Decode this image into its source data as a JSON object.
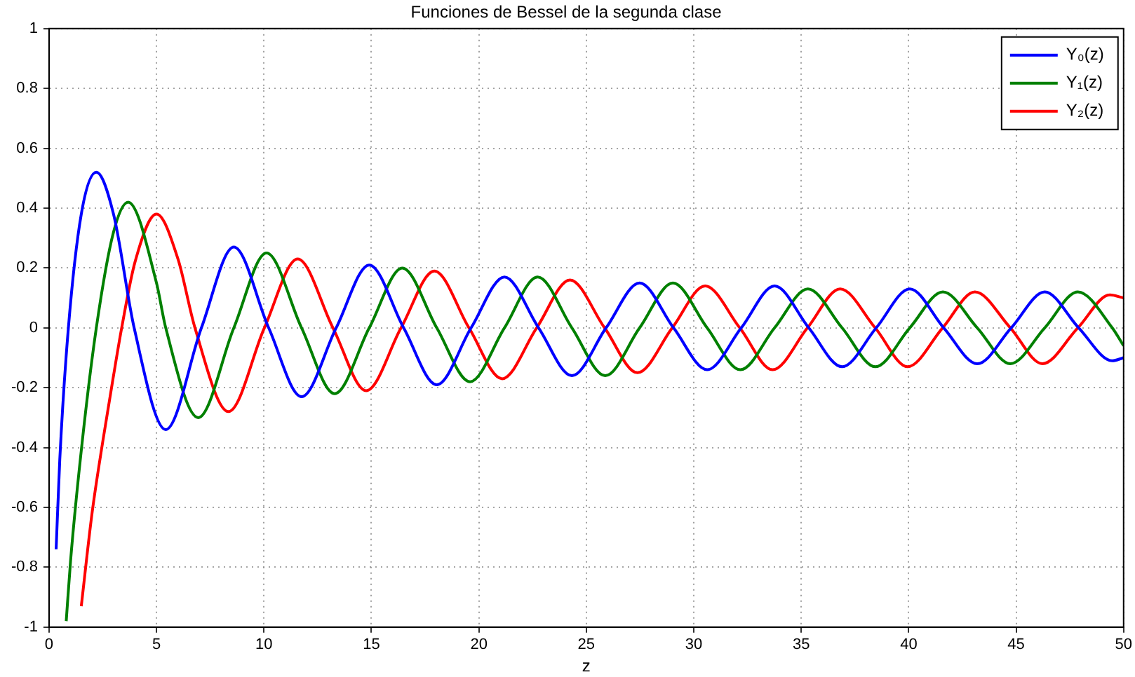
{
  "chart_data": {
    "type": "line",
    "title": "Funciones de Bessel de la segunda clase",
    "xlabel": "z",
    "xlim": [
      0,
      50
    ],
    "xticks": [
      0,
      5,
      10,
      15,
      20,
      25,
      30,
      35,
      40,
      45,
      50
    ],
    "ylim": [
      -1,
      1
    ],
    "yticks": [
      -1,
      -0.8,
      -0.6,
      -0.4,
      -0.2,
      0,
      0.2,
      0.4,
      0.6,
      0.8,
      1
    ],
    "grid": true,
    "legend": "top right",
    "line_style": "solid",
    "marker": "none",
    "series": [
      {
        "name": "Y₀(z)",
        "color": "#0000ff",
        "x": [
          0.33,
          0.5,
          0.9,
          1.5,
          2.2,
          3,
          3.96,
          5.43,
          7.09,
          8.6,
          10.22,
          11.75,
          13.36,
          14.9,
          16.5,
          18.04,
          19.64,
          21.19,
          22.78,
          24.33,
          25.92,
          27.48,
          29.06,
          30.62,
          32.21,
          33.76,
          35.35,
          36.9,
          38.49,
          40.05,
          41.63,
          43.19,
          44.77,
          46.33,
          47.91,
          49.47,
          50
        ],
        "values": [
          -0.74,
          -0.44,
          0,
          0.38,
          0.52,
          0.38,
          0,
          -0.34,
          0,
          0.27,
          0,
          -0.23,
          0,
          0.21,
          0,
          -0.19,
          0,
          0.17,
          0,
          -0.16,
          0,
          0.15,
          0,
          -0.14,
          0,
          0.14,
          0,
          -0.13,
          0,
          0.13,
          0,
          -0.12,
          0,
          0.12,
          0,
          -0.11,
          -0.1
        ]
      },
      {
        "name": "Y₁(z)",
        "color": "#008000",
        "x": [
          0.8,
          1,
          1.5,
          2.2,
          3,
          3.68,
          5,
          5.43,
          6.94,
          8.6,
          10.12,
          11.75,
          13.29,
          14.9,
          16.44,
          18.04,
          19.59,
          21.19,
          22.74,
          24.33,
          25.88,
          27.48,
          29.03,
          30.62,
          32.17,
          33.76,
          35.31,
          36.9,
          38.45,
          40.05,
          41.59,
          43.19,
          44.73,
          46.33,
          47.87,
          49.47,
          50
        ],
        "values": [
          -0.98,
          -0.78,
          -0.41,
          0,
          0.32,
          0.42,
          0.15,
          0,
          -0.3,
          0,
          0.25,
          0,
          -0.22,
          0,
          0.2,
          0,
          -0.18,
          0,
          0.17,
          0,
          -0.16,
          0,
          0.15,
          0,
          -0.14,
          0,
          0.13,
          0,
          -0.13,
          0,
          0.12,
          0,
          -0.12,
          0,
          0.12,
          0,
          -0.06
        ]
      },
      {
        "name": "Y₂(z)",
        "color": "#ff0000",
        "x": [
          1.5,
          2,
          2.5,
          3,
          3.38,
          4,
          5,
          6,
          6.79,
          8.35,
          10.02,
          11.57,
          13.21,
          14.76,
          16.38,
          17.93,
          19.54,
          21.08,
          22.69,
          24.24,
          25.85,
          27.38,
          29,
          30.53,
          32.14,
          33.67,
          35.29,
          36.81,
          38.44,
          39.95,
          41.58,
          43.08,
          44.73,
          46.22,
          47.87,
          49.36,
          50
        ],
        "values": [
          -0.93,
          -0.62,
          -0.38,
          -0.16,
          0,
          0.22,
          0.38,
          0.23,
          0,
          -0.28,
          0,
          0.23,
          0,
          -0.21,
          0,
          0.19,
          0,
          -0.17,
          0,
          0.16,
          0,
          -0.15,
          0,
          0.14,
          0,
          -0.14,
          0,
          0.13,
          0,
          -0.13,
          0,
          0.12,
          0,
          -0.12,
          0,
          0.11,
          0.1
        ]
      }
    ]
  }
}
